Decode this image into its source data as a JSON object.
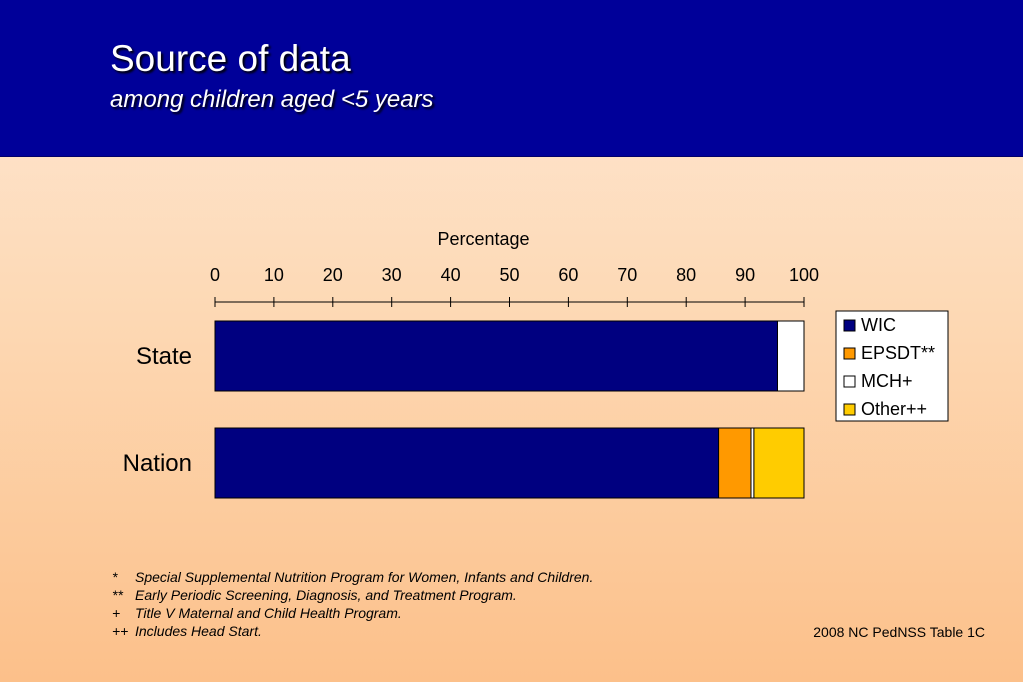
{
  "header": {
    "title": "Source of data",
    "subtitle": "among children aged <5 years"
  },
  "chart_data": {
    "type": "bar",
    "orientation": "horizontal",
    "stacked": true,
    "xlabel": "Percentage",
    "xlabel_position": "top",
    "xlim": [
      0,
      100
    ],
    "xticks": [
      0,
      10,
      20,
      30,
      40,
      50,
      60,
      70,
      80,
      90,
      100
    ],
    "grid": false,
    "legend_position": "right",
    "categories": [
      "State",
      "Nation"
    ],
    "series": [
      {
        "name": "WIC",
        "color": "#000080",
        "values": [
          95.5,
          85.5
        ]
      },
      {
        "name": "EPSDT**",
        "color": "#ff9900",
        "values": [
          0,
          5.5
        ]
      },
      {
        "name": "MCH+",
        "color": "#ffffff",
        "values": [
          4.5,
          0.5
        ]
      },
      {
        "name": "Other++",
        "color": "#ffcc00",
        "values": [
          0,
          8.5
        ]
      }
    ]
  },
  "footnotes": [
    {
      "mark": "*",
      "text": "Special Supplemental  Nutrition Program for Women, Infants and Children."
    },
    {
      "mark": "**",
      "text": "Early Periodic Screening, Diagnosis, and Treatment Program."
    },
    {
      "mark": "+",
      "text": "Title V Maternal and Child Health Program."
    },
    {
      "mark": "++",
      "text": "Includes Head Start."
    }
  ],
  "source": "2008 NC PedNSS Table 1C"
}
